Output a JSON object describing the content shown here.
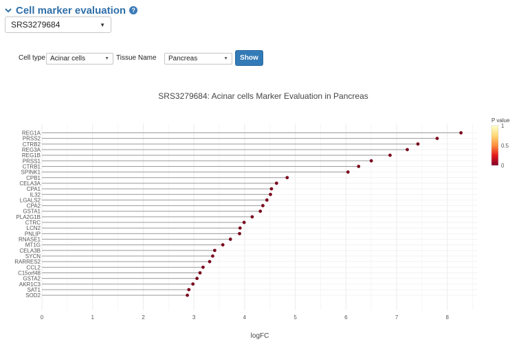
{
  "section": {
    "title": "Cell marker evaluation",
    "help_icon": "question-circle-icon",
    "collapse_icon": "chevron-down-icon"
  },
  "sample_select": {
    "value": "SRS3279684"
  },
  "filters": {
    "cell_type_label": "Cell type",
    "cell_type_value": "Acinar cells",
    "tissue_label": "Tissue Name",
    "tissue_value": "Pancreas",
    "show_label": "Show"
  },
  "colors": {
    "accent": "#337ab7",
    "header": "#2f6fa8",
    "marker": "#7a0a1e",
    "stem": "#9a9a9a"
  },
  "chart_data": {
    "type": "scatter",
    "style": "lollipop",
    "title": "SRS3279684: Acinar cells Marker Evaluation in Pancreas",
    "xlabel": "logFC",
    "ylabel": "",
    "xlim": [
      0,
      8.6
    ],
    "xticks": [
      0,
      1,
      2,
      3,
      4,
      5,
      6,
      7,
      8
    ],
    "grid": true,
    "categories": [
      "REG1A",
      "PRSS2",
      "CTRB2",
      "REG3A",
      "REG1B",
      "PRSS1",
      "CTRB1",
      "SPINK1",
      "CPB1",
      "CELA3A",
      "CPA1",
      "IL32",
      "LGALS2",
      "CPA2",
      "GSTA1",
      "PLA2G1B",
      "CTRC",
      "LCN2",
      "PNLIP",
      "RNASE1",
      "MT1G",
      "CELA3B",
      "SYCN",
      "RARRES2",
      "CCL2",
      "C15orf48",
      "GSTA2",
      "AKR1C3",
      "SAT1",
      "SOD2"
    ],
    "values": [
      8.27,
      7.8,
      7.42,
      7.21,
      6.87,
      6.5,
      6.25,
      6.04,
      4.84,
      4.63,
      4.53,
      4.51,
      4.44,
      4.36,
      4.31,
      4.15,
      3.99,
      3.91,
      3.9,
      3.72,
      3.57,
      3.41,
      3.37,
      3.31,
      3.18,
      3.12,
      3.06,
      2.98,
      2.9,
      2.87
    ],
    "colorbar": {
      "title": "P value",
      "ticks": [
        "1",
        "0.5",
        "0"
      ],
      "range": [
        0,
        1
      ],
      "colors": [
        "#ffffcc",
        "#feb24c",
        "#f03b20",
        "#bd0026",
        "#67000d"
      ]
    }
  }
}
